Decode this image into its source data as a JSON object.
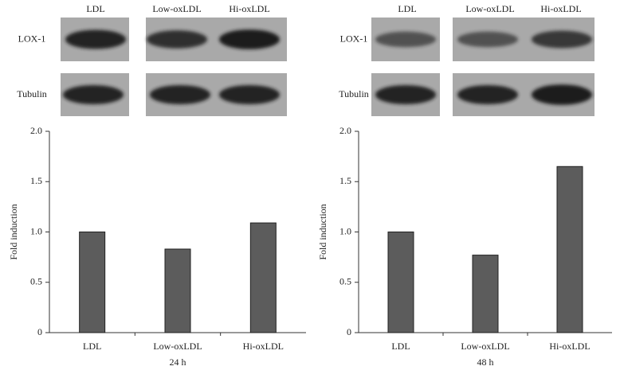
{
  "blots": [
    {
      "columns": [
        "LDL",
        "Low-oxLDL",
        "Hi-oxLDL"
      ],
      "rows": [
        "LOX-1",
        "Tubulin"
      ]
    },
    {
      "columns": [
        "LDL",
        "Low-oxLDL",
        "Hi-oxLDL"
      ],
      "rows": [
        "LOX-1",
        "Tubulin"
      ]
    }
  ],
  "chart_data": [
    {
      "type": "bar",
      "categories": [
        "LDL",
        "Low-oxLDL",
        "Hi-oxLDL"
      ],
      "values": [
        1.0,
        0.83,
        1.09
      ],
      "color": "#5c5c5c",
      "ylabel": "Fold induction",
      "xlabel": "24 h",
      "ylim": [
        0,
        2
      ],
      "yticks": [
        0,
        0.5,
        {
          "value": 1,
          "label": "1.0"
        },
        1.5,
        {
          "value": 2,
          "label": "2.0"
        }
      ]
    },
    {
      "type": "bar",
      "categories": [
        "LDL",
        "Low-oxLDL",
        "Hi-oxLDL"
      ],
      "values": [
        1.0,
        0.77,
        1.65
      ],
      "color": "#5c5c5c",
      "ylabel": "Fold induction",
      "xlabel": "48 h",
      "ylim": [
        0,
        2
      ],
      "yticks": [
        0,
        0.5,
        {
          "value": 1,
          "label": "1.0"
        },
        1.5,
        {
          "value": 2,
          "label": "2.0"
        }
      ]
    }
  ]
}
